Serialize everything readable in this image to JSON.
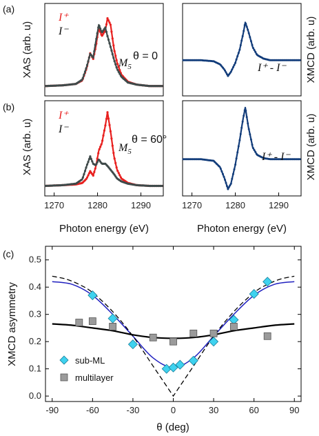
{
  "colors": {
    "i_plus": "#e8201f",
    "i_minus": "#3f4a4a",
    "xmcd": "#123c7a",
    "subml_marker": "#3ed2ef",
    "multilayer_marker": "#9b9b9b",
    "blue_fit": "#1f1fbf",
    "black_fit": "#000000"
  },
  "panel_labels": [
    "(a)",
    "(b)",
    "(c)"
  ],
  "chart_data": [
    {
      "panel": "(a) left",
      "type": "line",
      "ylabel": "XAS (arb. u)",
      "xlabel": "",
      "xlim": [
        1268,
        1295
      ],
      "ylim": [
        -0.08,
        1.1
      ],
      "xticks": [
        1270,
        1280,
        1290
      ],
      "annotations": {
        "plus": "I⁺",
        "minus": "I⁻",
        "edge": "M",
        "edge_sub": "5",
        "theta": "θ = 0"
      },
      "series": [
        {
          "name": "I⁺",
          "x": [
            1268,
            1272,
            1275,
            1276.5,
            1277.5,
            1278.3,
            1279,
            1279.6,
            1280.3,
            1281,
            1281.8,
            1282.3,
            1283,
            1283.8,
            1284.5,
            1285.5,
            1287,
            1289,
            1292,
            1295
          ],
          "y": [
            0,
            0.01,
            0.03,
            0.08,
            0.25,
            0.46,
            0.38,
            0.55,
            0.82,
            0.7,
            0.78,
            0.95,
            0.86,
            0.52,
            0.33,
            0.16,
            0.06,
            0.02,
            0.0,
            0.0
          ]
        },
        {
          "name": "I⁻",
          "x": [
            1268,
            1272,
            1275,
            1276.5,
            1277.5,
            1278.3,
            1279,
            1279.6,
            1280.3,
            1281,
            1281.8,
            1282.3,
            1283,
            1283.8,
            1284.5,
            1285.5,
            1287,
            1289,
            1292,
            1295
          ],
          "y": [
            0,
            0.01,
            0.03,
            0.09,
            0.27,
            0.45,
            0.4,
            0.62,
            0.86,
            0.75,
            0.82,
            0.7,
            0.55,
            0.37,
            0.24,
            0.13,
            0.05,
            0.02,
            0.0,
            0.0
          ]
        }
      ]
    },
    {
      "panel": "(a) right",
      "type": "line",
      "ylabel": "XMCD (arb. u)",
      "xlabel": "",
      "xlim": [
        1268,
        1295
      ],
      "ylim": [
        -0.6,
        1.0
      ],
      "xticks": [
        1270,
        1280,
        1290
      ],
      "annotations": {
        "label": "I⁺ - I⁻"
      },
      "series": [
        {
          "name": "I⁺ - I⁻",
          "x": [
            1268,
            1272,
            1275,
            1276.5,
            1277.5,
            1278.3,
            1279,
            1280,
            1281,
            1281.8,
            1282.3,
            1283,
            1284,
            1285,
            1286.5,
            1288,
            1291,
            1295
          ],
          "y": [
            0,
            0,
            -0.02,
            -0.08,
            -0.18,
            -0.3,
            -0.22,
            -0.05,
            0.2,
            0.5,
            0.72,
            0.55,
            0.25,
            0.1,
            0.03,
            0.0,
            0.0,
            0.0
          ]
        }
      ]
    },
    {
      "panel": "(b) left",
      "type": "line",
      "ylabel": "XAS (arb. u)",
      "xlabel": "Photon energy (eV)",
      "xlim": [
        1268,
        1295
      ],
      "ylim": [
        -0.08,
        1.1
      ],
      "xticks": [
        1270,
        1280,
        1290
      ],
      "annotations": {
        "plus": "I⁺",
        "minus": "I⁻",
        "edge": "M",
        "edge_sub": "5",
        "theta": "θ = 60°"
      },
      "series": [
        {
          "name": "I⁺",
          "x": [
            1268,
            1272,
            1275,
            1276.5,
            1277.5,
            1278.3,
            1279,
            1279.6,
            1280.3,
            1281,
            1281.8,
            1282.3,
            1283,
            1283.8,
            1284.5,
            1285.5,
            1287,
            1289,
            1292,
            1295
          ],
          "y": [
            0,
            0.01,
            0.02,
            0.04,
            0.1,
            0.2,
            0.14,
            0.26,
            0.48,
            0.58,
            0.82,
            1.0,
            0.74,
            0.4,
            0.22,
            0.1,
            0.04,
            0.01,
            0.0,
            0.0
          ]
        },
        {
          "name": "I⁻",
          "x": [
            1268,
            1272,
            1275,
            1276.5,
            1277.5,
            1278.3,
            1279,
            1279.6,
            1280.3,
            1281,
            1281.8,
            1282.3,
            1283,
            1283.8,
            1284.5,
            1285.5,
            1287,
            1289,
            1292,
            1295
          ],
          "y": [
            0,
            0.01,
            0.03,
            0.09,
            0.27,
            0.4,
            0.3,
            0.28,
            0.36,
            0.3,
            0.3,
            0.27,
            0.22,
            0.16,
            0.1,
            0.06,
            0.03,
            0.01,
            0.0,
            0.0
          ]
        }
      ]
    },
    {
      "panel": "(b) right",
      "type": "line",
      "ylabel": "XMCD (arb. u)",
      "xlabel": "Photon energy (eV)",
      "xlim": [
        1268,
        1295
      ],
      "ylim": [
        -0.6,
        1.0
      ],
      "xticks": [
        1270,
        1280,
        1290
      ],
      "annotations": {
        "label": "I⁺ - I⁻"
      },
      "series": [
        {
          "name": "I⁺ - I⁻",
          "x": [
            1268,
            1272,
            1275,
            1276.5,
            1277.5,
            1278.3,
            1279,
            1280,
            1281,
            1281.8,
            1282.3,
            1283,
            1284,
            1285,
            1286.5,
            1288,
            1291,
            1295
          ],
          "y": [
            0,
            0,
            -0.03,
            -0.15,
            -0.35,
            -0.55,
            -0.45,
            -0.1,
            0.35,
            0.75,
            0.95,
            0.6,
            0.22,
            0.08,
            0.02,
            0.0,
            0.0,
            0.0
          ]
        }
      ]
    },
    {
      "panel": "(c)",
      "type": "scatter",
      "xlabel": "θ (deg)",
      "ylabel": "XMCD asymmetry",
      "xlim": [
        -95,
        95
      ],
      "ylim": [
        -0.02,
        0.55
      ],
      "xticks": [
        -90,
        -60,
        -30,
        0,
        30,
        60,
        90
      ],
      "yticks": [
        0.0,
        0.1,
        0.2,
        0.3,
        0.4,
        0.5
      ],
      "yticklabels": [
        "0.0",
        "0.1",
        "0.2",
        "0.3",
        "0.4",
        "0.5"
      ],
      "legend": {
        "position": "bottom-left",
        "entries": [
          "sub-ML",
          "multilayer"
        ]
      },
      "series": [
        {
          "name": "sub-ML",
          "marker": "diamond",
          "x": [
            -60,
            -45,
            -30,
            -5,
            0,
            5,
            15,
            30,
            45,
            60,
            70
          ],
          "y": [
            0.37,
            0.285,
            0.19,
            0.1,
            0.105,
            0.115,
            0.13,
            0.2,
            0.28,
            0.375,
            0.42
          ]
        },
        {
          "name": "multilayer",
          "marker": "square",
          "x": [
            -70,
            -60,
            -45,
            -15,
            0,
            15,
            30,
            45,
            70
          ],
          "y": [
            0.27,
            0.275,
            0.255,
            0.215,
            0.2,
            0.23,
            0.23,
            0.255,
            0.22
          ]
        },
        {
          "name": "",
          "style": "blue-line",
          "x": [
            -90,
            -75,
            -60,
            -45,
            -30,
            -15,
            0,
            15,
            30,
            45,
            60,
            75,
            90
          ],
          "y": [
            0.42,
            0.41,
            0.37,
            0.3,
            0.22,
            0.14,
            0.105,
            0.14,
            0.22,
            0.3,
            0.37,
            0.41,
            0.42
          ]
        },
        {
          "name": "",
          "style": "black-line",
          "x": [
            -90,
            -75,
            -60,
            -45,
            -30,
            -15,
            0,
            15,
            30,
            45,
            60,
            75,
            90
          ],
          "y": [
            0.265,
            0.26,
            0.25,
            0.24,
            0.225,
            0.215,
            0.212,
            0.215,
            0.225,
            0.24,
            0.25,
            0.26,
            0.265
          ]
        },
        {
          "name": "",
          "style": "black-dashed",
          "x": [
            -90,
            -80,
            -70,
            -60,
            -45,
            -30,
            -15,
            0,
            15,
            30,
            45,
            60,
            70,
            80,
            90
          ],
          "y": [
            0.44,
            0.43,
            0.41,
            0.38,
            0.31,
            0.22,
            0.11,
            0.0,
            0.11,
            0.22,
            0.31,
            0.38,
            0.41,
            0.43,
            0.44
          ]
        }
      ]
    }
  ]
}
